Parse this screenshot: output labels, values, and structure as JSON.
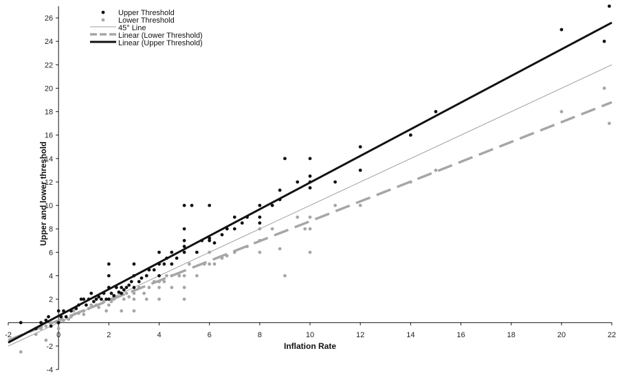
{
  "chart_data": {
    "type": "scatter",
    "title": "",
    "xlabel": "Inflation Rate",
    "ylabel": "Upper and lower threshold",
    "xlim": [
      -2,
      22
    ],
    "ylim": [
      -4,
      27
    ],
    "grid": false,
    "legend_position": "top-left",
    "x_ticks": [
      -2,
      0,
      2,
      4,
      6,
      8,
      10,
      12,
      14,
      16,
      18,
      20,
      22
    ],
    "y_ticks": [
      -4,
      -2,
      2,
      4,
      6,
      8,
      10,
      12,
      14,
      16,
      18,
      20,
      22,
      24,
      26
    ],
    "series": [
      {
        "name": "Upper Threshold",
        "kind": "scatter",
        "color": "#111111",
        "points": [
          [
            -1.5,
            0
          ],
          [
            -0.9,
            -0.5
          ],
          [
            -0.7,
            0
          ],
          [
            -0.5,
            0.2
          ],
          [
            -0.4,
            0.5
          ],
          [
            -0.3,
            -0.3
          ],
          [
            0,
            0
          ],
          [
            0,
            1
          ],
          [
            0.1,
            0.5
          ],
          [
            0.2,
            1
          ],
          [
            0.3,
            0.5
          ],
          [
            0.5,
            1
          ],
          [
            0.7,
            1.2
          ],
          [
            0.8,
            1.5
          ],
          [
            0.9,
            2
          ],
          [
            1,
            2
          ],
          [
            1.1,
            1.5
          ],
          [
            1.2,
            2
          ],
          [
            1.3,
            2.5
          ],
          [
            1.4,
            1.8
          ],
          [
            1.5,
            2
          ],
          [
            1.6,
            2.2
          ],
          [
            1.7,
            2
          ],
          [
            1.8,
            2.5
          ],
          [
            1.9,
            2
          ],
          [
            2,
            2
          ],
          [
            2,
            3
          ],
          [
            2,
            4
          ],
          [
            2,
            5
          ],
          [
            2.1,
            2.5
          ],
          [
            2.2,
            2.3
          ],
          [
            2.3,
            3
          ],
          [
            2.4,
            2.6
          ],
          [
            2.5,
            2.5
          ],
          [
            2.5,
            3
          ],
          [
            2.6,
            2.8
          ],
          [
            2.7,
            3
          ],
          [
            2.8,
            3.2
          ],
          [
            2.9,
            3.5
          ],
          [
            3,
            3
          ],
          [
            3,
            4
          ],
          [
            3,
            5
          ],
          [
            3.2,
            3.5
          ],
          [
            3.3,
            3.8
          ],
          [
            3.5,
            4
          ],
          [
            3.6,
            4.5
          ],
          [
            3.8,
            4.5
          ],
          [
            4,
            4
          ],
          [
            4,
            5
          ],
          [
            4,
            6
          ],
          [
            4.2,
            5
          ],
          [
            4.3,
            5.5
          ],
          [
            4.5,
            5
          ],
          [
            4.5,
            6
          ],
          [
            4.7,
            5.5
          ],
          [
            5,
            6
          ],
          [
            5,
            6.5
          ],
          [
            5,
            7
          ],
          [
            5,
            8
          ],
          [
            5,
            10
          ],
          [
            5.3,
            10
          ],
          [
            5.5,
            6
          ],
          [
            5.7,
            7
          ],
          [
            6,
            7
          ],
          [
            6,
            7.2
          ],
          [
            6,
            10
          ],
          [
            6.2,
            6.8
          ],
          [
            6.5,
            7.5
          ],
          [
            6.7,
            8
          ],
          [
            7,
            8
          ],
          [
            7,
            9
          ],
          [
            7.3,
            8.5
          ],
          [
            7.5,
            9
          ],
          [
            8,
            9
          ],
          [
            8,
            10
          ],
          [
            8,
            8.5
          ],
          [
            8.5,
            10
          ],
          [
            8.8,
            11.3
          ],
          [
            8.8,
            10.5
          ],
          [
            9,
            14
          ],
          [
            9.5,
            12
          ],
          [
            10,
            12
          ],
          [
            10,
            12.5
          ],
          [
            10,
            14
          ],
          [
            10,
            11.5
          ],
          [
            11,
            12
          ],
          [
            12,
            13
          ],
          [
            12,
            15
          ],
          [
            14,
            16
          ],
          [
            15,
            18
          ],
          [
            20,
            25
          ],
          [
            21.7,
            24
          ],
          [
            21.9,
            27
          ]
        ]
      },
      {
        "name": "Lower Threshold",
        "kind": "scatter",
        "color": "#a6a6a6",
        "points": [
          [
            -1.5,
            -2.5
          ],
          [
            -0.9,
            -1
          ],
          [
            -0.7,
            -0.5
          ],
          [
            -0.5,
            -0.3
          ],
          [
            -0.5,
            -1.5
          ],
          [
            -0.3,
            0
          ],
          [
            0,
            0
          ],
          [
            0,
            -0.5
          ],
          [
            0.2,
            0.2
          ],
          [
            0.4,
            0.3
          ],
          [
            0.5,
            0.5
          ],
          [
            0.6,
            1
          ],
          [
            0.8,
            0.8
          ],
          [
            1,
            1
          ],
          [
            1,
            0.7
          ],
          [
            1.2,
            1.2
          ],
          [
            1.3,
            1.5
          ],
          [
            1.5,
            1.5
          ],
          [
            1.6,
            1.3
          ],
          [
            1.8,
            1.8
          ],
          [
            1.9,
            1
          ],
          [
            2,
            2
          ],
          [
            2,
            1.5
          ],
          [
            2.1,
            1.8
          ],
          [
            2.2,
            2
          ],
          [
            2.3,
            2.2
          ],
          [
            2.5,
            2.5
          ],
          [
            2.5,
            1
          ],
          [
            2.6,
            2
          ],
          [
            2.7,
            2.5
          ],
          [
            2.8,
            2.2
          ],
          [
            3,
            2.5
          ],
          [
            3,
            2
          ],
          [
            3,
            1
          ],
          [
            3.2,
            3
          ],
          [
            3.4,
            2.5
          ],
          [
            3.5,
            2
          ],
          [
            3.6,
            3
          ],
          [
            3.8,
            3.5
          ],
          [
            4,
            3
          ],
          [
            4,
            3.5
          ],
          [
            4,
            2
          ],
          [
            4.2,
            3.5
          ],
          [
            4.3,
            4
          ],
          [
            4.5,
            3
          ],
          [
            4.5,
            4
          ],
          [
            4.8,
            4
          ],
          [
            5,
            2
          ],
          [
            5,
            3
          ],
          [
            5,
            4
          ],
          [
            5.2,
            5
          ],
          [
            5.5,
            4
          ],
          [
            5.8,
            5
          ],
          [
            6,
            5
          ],
          [
            6,
            6
          ],
          [
            6.2,
            5
          ],
          [
            6.5,
            5.5
          ],
          [
            6.7,
            5.7
          ],
          [
            7,
            6
          ],
          [
            7.5,
            6.5
          ],
          [
            8,
            6
          ],
          [
            8,
            7
          ],
          [
            8,
            8
          ],
          [
            8.5,
            8
          ],
          [
            8.8,
            6.3
          ],
          [
            9,
            4
          ],
          [
            9.5,
            9
          ],
          [
            9.8,
            8
          ],
          [
            10,
            6
          ],
          [
            10,
            8
          ],
          [
            10,
            9
          ],
          [
            11,
            10
          ],
          [
            12,
            10
          ],
          [
            14,
            12
          ],
          [
            15,
            13
          ],
          [
            20,
            18
          ],
          [
            21.7,
            20
          ],
          [
            21.9,
            17
          ]
        ]
      },
      {
        "name": "45° Line",
        "kind": "line",
        "color": "#9e9e9e",
        "x": [
          -2,
          22
        ],
        "y": [
          -2,
          22
        ]
      },
      {
        "name": "Linear (Lower Threshold)",
        "kind": "line",
        "color": "#a6a6a6",
        "dashed": true,
        "x": [
          -2,
          22
        ],
        "y": [
          -1.5,
          18.8
        ]
      },
      {
        "name": "Linear (Upper Threshold)",
        "kind": "line",
        "color": "#111111",
        "x": [
          -2,
          22
        ],
        "y": [
          -1.7,
          25.6
        ]
      }
    ]
  }
}
